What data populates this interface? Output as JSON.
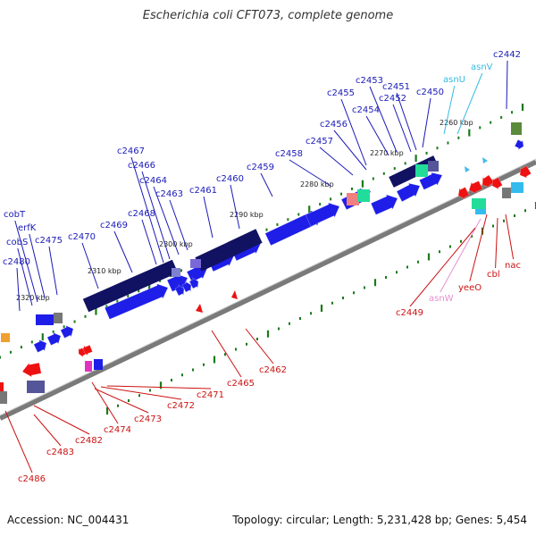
{
  "title": "Escherichia coli CFT073, complete genome",
  "footer": {
    "accession": "Accession: NC_004431",
    "topology": "Topology: circular; Length: 5,231,428 bp; Genes: 5,454"
  },
  "colors": {
    "backbone": "#7a7a7a",
    "forward_gene": "#1e1ee8",
    "forward_dark": "#121262",
    "reverse_gene": "#ee1111",
    "tick": "#1a7a1a",
    "label_forward": "#1a1ab8",
    "label_reverse": "#cc1111",
    "label_rna_forward": "#33bbe0",
    "label_rna_reverse": "#e58fd0"
  },
  "scale_labels": [
    "2260 kbp",
    "2270 kbp",
    "2280 kbp",
    "2290 kbp",
    "2300 kbp",
    "2310 kbp",
    "2320 kbp"
  ],
  "forward_labels": [
    "c2442",
    "asnV",
    "asnU",
    "c2450",
    "c2451",
    "c2452",
    "c2453",
    "c2454",
    "c2455",
    "c2456",
    "c2457",
    "c2458",
    "c2459",
    "c2460",
    "c2461",
    "c2463",
    "c2464",
    "c2466",
    "c2467",
    "c2468",
    "c2469",
    "c2470",
    "c2475",
    "erfK",
    "cobT",
    "cobS",
    "c2480"
  ],
  "reverse_labels": [
    "nac",
    "cbl",
    "yeeO",
    "asnW",
    "c2449",
    "c2462",
    "c2465",
    "c2471",
    "c2472",
    "c2473",
    "c2474",
    "c2482",
    "c2483",
    "c2486"
  ]
}
